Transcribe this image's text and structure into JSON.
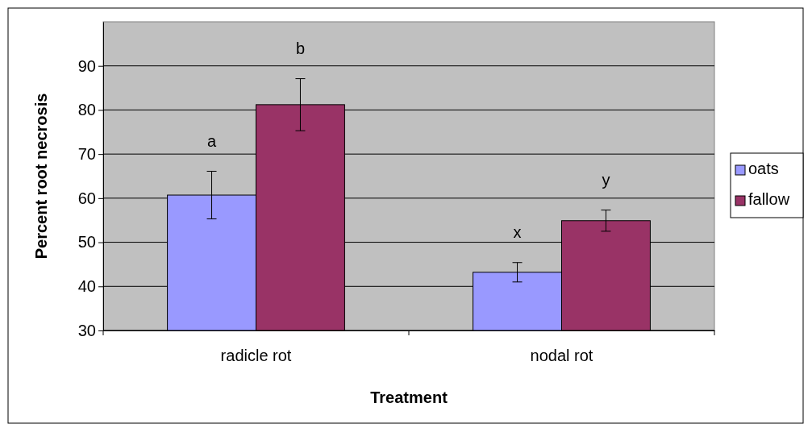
{
  "chart_data": {
    "type": "bar",
    "xlabel": "Treatment",
    "ylabel": "Percent root necrosis",
    "categories": [
      "radicle rot",
      "nodal rot"
    ],
    "series": [
      {
        "name": "oats",
        "color": "#9999ff",
        "values": [
          60.7,
          43.2
        ],
        "errors": [
          5.4,
          2.2
        ]
      },
      {
        "name": "fallow",
        "color": "#993366",
        "values": [
          81.2,
          54.9
        ],
        "errors": [
          5.9,
          2.4
        ]
      }
    ],
    "ylim": [
      30,
      100
    ],
    "yticks": [
      30,
      40,
      50,
      60,
      70,
      80,
      90
    ],
    "grid": "y",
    "legend": "right",
    "annotations": [
      "a",
      "b",
      "x",
      "y"
    ]
  }
}
